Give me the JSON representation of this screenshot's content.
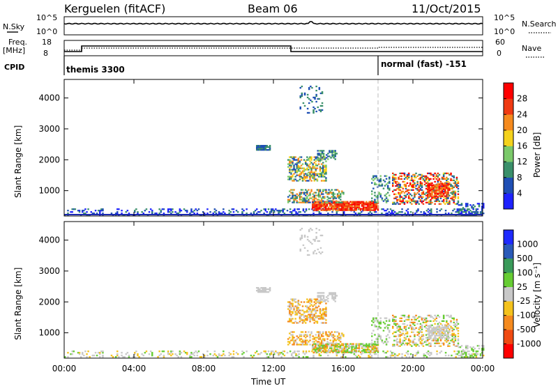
{
  "header": {
    "station": "Kerguelen (fitACF)",
    "beam": "Beam 06",
    "date": "11/Oct/2015"
  },
  "summary_panels": {
    "nsky_label": "N.Sky",
    "nsearch_label": "N.Search",
    "freq_label_1": "Freq.",
    "freq_label_2": "[MHz]",
    "nave_label": "Nave",
    "cpid_label": "CPID",
    "nsky_ticks": [
      "10^5",
      "10^0"
    ],
    "nsearch_ticks": [
      "10^5",
      "10^0"
    ],
    "freq_ticks": [
      "18",
      "8"
    ],
    "nave_ticks": [
      "60",
      "0"
    ],
    "cpid_segments": [
      {
        "label": "themis 3300",
        "start_hour": 0
      },
      {
        "label": "normal (fast) -151",
        "start_hour": 18
      }
    ]
  },
  "chart_data": [
    {
      "type": "heatmap",
      "name": "power",
      "ylabel": "Slant Range [km]",
      "xlabel": "",
      "xlim": [
        0,
        24
      ],
      "ylim": [
        180,
        4600
      ],
      "yticks": [
        "1000",
        "2000",
        "3000",
        "4000"
      ],
      "colorbar": {
        "label": "Power [dB]",
        "ticks": [
          "4",
          "8",
          "12",
          "16",
          "20",
          "24",
          "28"
        ],
        "colors": [
          "#1e22ff",
          "#1f4fb4",
          "#3a8f6a",
          "#7bc96a",
          "#f4d21c",
          "#f58a1e",
          "#f03a12",
          "#ff0000"
        ]
      }
    },
    {
      "type": "heatmap",
      "name": "velocity",
      "ylabel": "Slant Range [km]",
      "xlabel": "Time UT",
      "xlim": [
        0,
        24
      ],
      "ylim": [
        180,
        4600
      ],
      "yticks": [
        "1000",
        "2000",
        "3000",
        "4000"
      ],
      "xticks": [
        "00:00",
        "04:00",
        "08:00",
        "12:00",
        "16:00",
        "20:00",
        "00:00"
      ],
      "colorbar": {
        "label": "Velocity [m s⁻¹]",
        "ticks": [
          "1000",
          "500",
          "100",
          "25",
          "-25",
          "-100",
          "-500",
          "-1000"
        ],
        "colors": [
          "#1e2aff",
          "#2a5ab8",
          "#3a9a5a",
          "#66cc33",
          "#c8c8c8",
          "#f4c21c",
          "#f58a1e",
          "#f04a12",
          "#ff0000"
        ]
      }
    }
  ]
}
